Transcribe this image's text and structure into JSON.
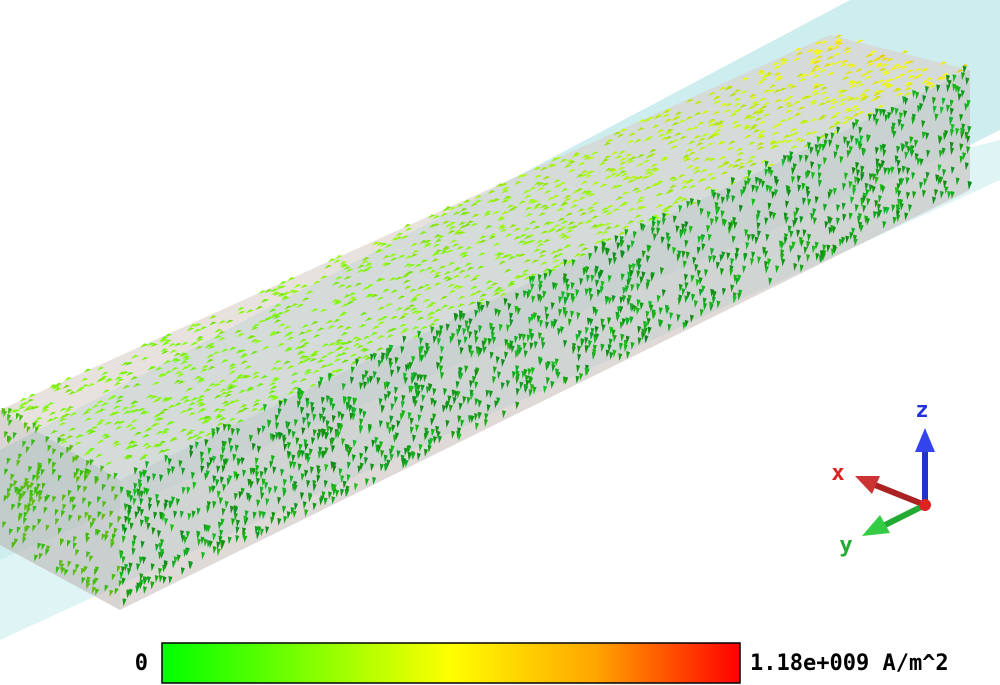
{
  "axes_triad": {
    "z": "z",
    "x": "x",
    "y": "y"
  },
  "colorbar": {
    "min_label": "0",
    "max_label": "1.18e+009 A/m^2"
  }
}
